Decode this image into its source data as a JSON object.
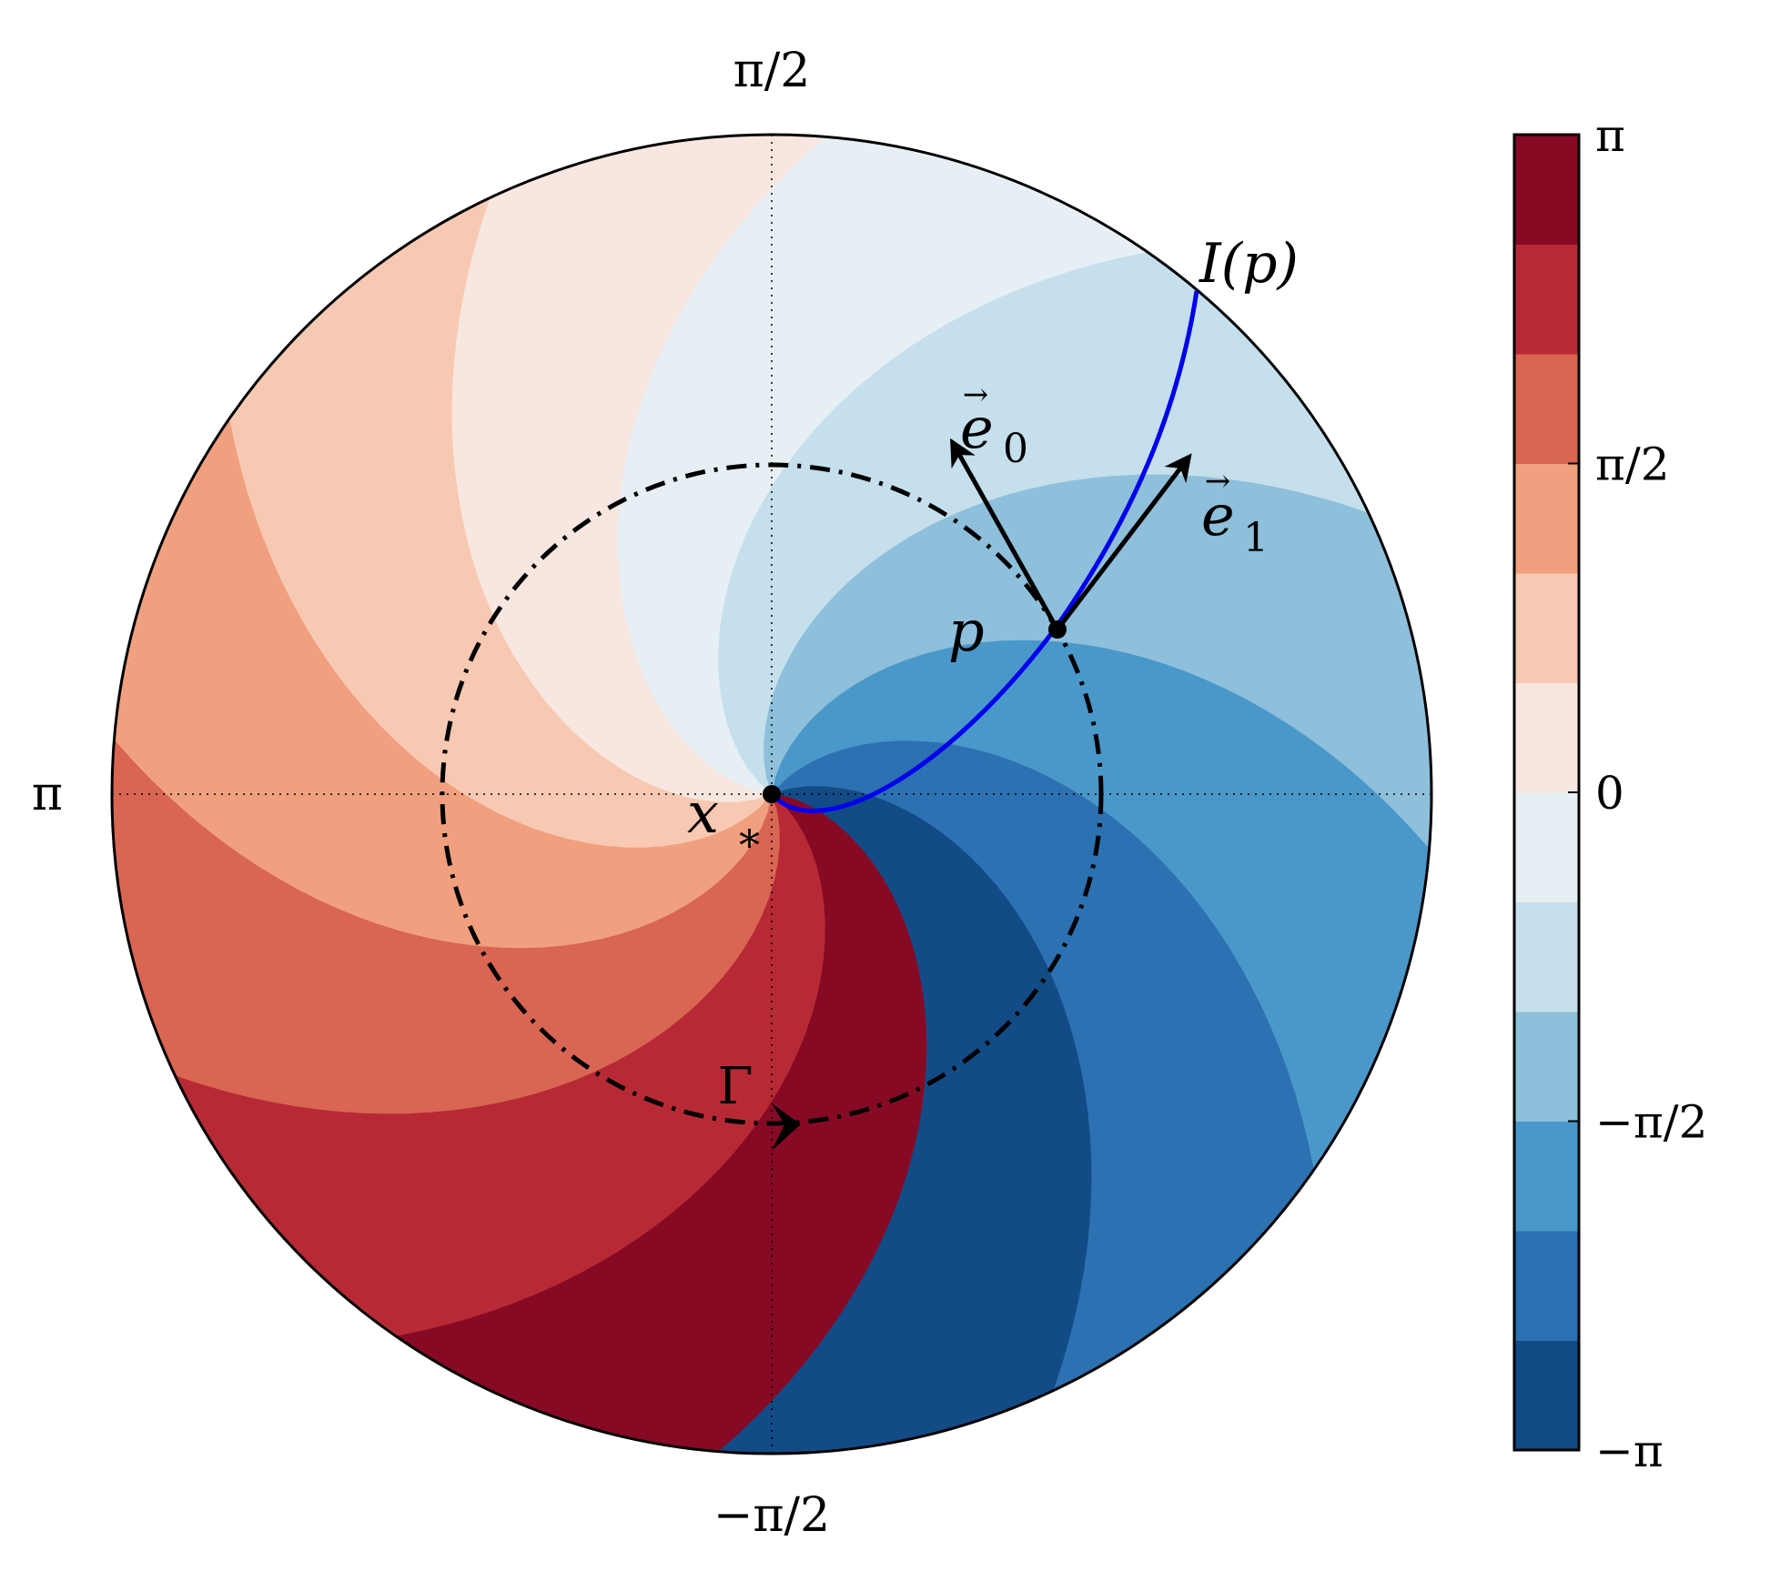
{
  "diagram": {
    "angle_labels": {
      "top": "π/2",
      "left": "π",
      "bottom": "−π/2"
    },
    "points": {
      "center": {
        "name": "x",
        "subscript": "*"
      },
      "p": {
        "name": "p"
      }
    },
    "curve": {
      "label": "I(p)",
      "color": "#0000ee"
    },
    "vectors": {
      "e0": {
        "name": "e",
        "subscript": "0",
        "arrow": "→"
      },
      "e1": {
        "name": "e",
        "subscript": "1",
        "arrow": "→"
      }
    },
    "loop": {
      "label": "Γ"
    },
    "phase_colors": [
      "#134b87",
      "#2c71b1",
      "#4a98c9",
      "#8ebfdb",
      "#c5dfec",
      "#e6eff4",
      "#f8e7e0",
      "#f8c9b2",
      "#f0a07e",
      "#d96553",
      "#b72a35",
      "#870a25"
    ]
  },
  "colorbar": {
    "min": "−π",
    "max": "π",
    "ticks": [
      {
        "value": "−π",
        "label": "−π"
      },
      {
        "value": "−π/2",
        "label": "−π/2"
      },
      {
        "value": "0",
        "label": "0"
      },
      {
        "value": "π/2",
        "label": "π/2"
      },
      {
        "value": "π",
        "label": "π"
      }
    ],
    "bins": 12
  }
}
